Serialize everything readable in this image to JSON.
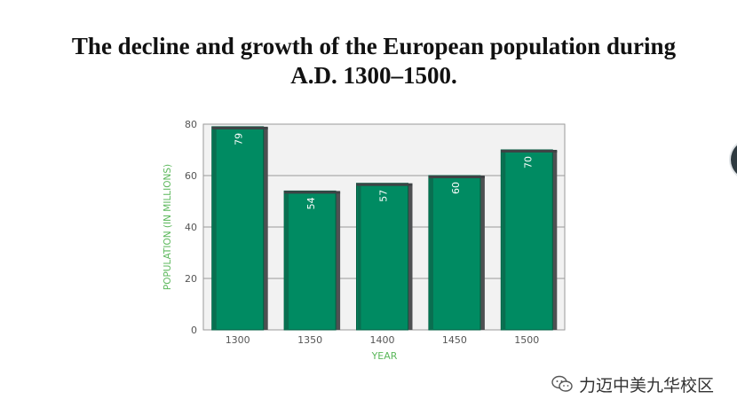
{
  "title_lines": [
    "The decline and growth of the European population during",
    "A.D. 1300–1500."
  ],
  "watermark": {
    "text": "力迈中美九华校区",
    "icon": "wechat-icon"
  },
  "colors": {
    "bar": "#008b62",
    "bar_shade": "#4e5052",
    "axis_label": "#5cb85c",
    "plot_bg": "#f2f2f2"
  },
  "chart_data": {
    "type": "bar",
    "title": "The decline and growth of the European population during A.D. 1300–1500.",
    "categories": [
      "1300",
      "1350",
      "1400",
      "1450",
      "1500"
    ],
    "values": [
      79,
      54,
      57,
      60,
      70
    ],
    "xlabel": "YEAR",
    "ylabel": "POPULATION (IN MILLIONS)",
    "ylim": [
      0,
      80
    ],
    "yticks": [
      0,
      20,
      40,
      60,
      80
    ],
    "grid": true,
    "data_labels": true
  }
}
